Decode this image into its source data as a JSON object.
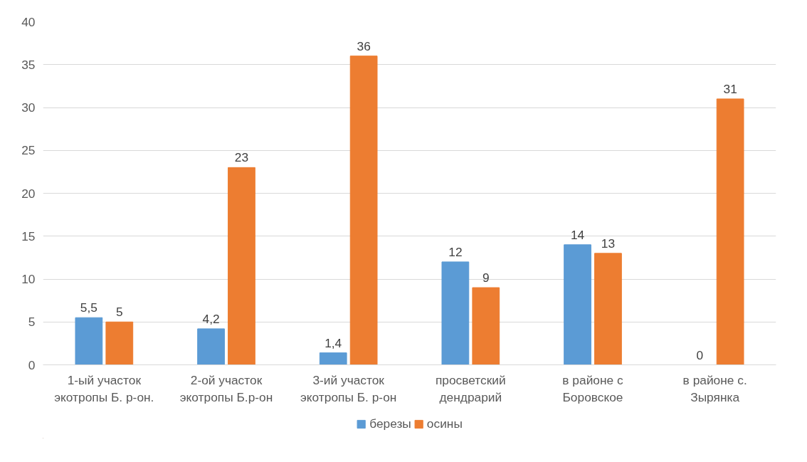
{
  "chart_data": {
    "type": "bar",
    "categories": [
      "1-ый участок экотропы Б. р-он.",
      "2-ой участок экотропы Б.р-он",
      "3-ий участок экотропы Б. р-он",
      "просветский дендрарий",
      "в районе с Боровское",
      "в районе с. Зырянка"
    ],
    "series": [
      {
        "name": "березы",
        "color": "#5b9bd5",
        "values": [
          5.5,
          4.2,
          1.4,
          12,
          14,
          0
        ],
        "value_labels": [
          "5,5",
          "4,2",
          "1,4",
          "12",
          "14",
          "0"
        ]
      },
      {
        "name": "осины",
        "color": "#ed7d31",
        "values": [
          5,
          23,
          36,
          9,
          13,
          31
        ],
        "value_labels": [
          "5",
          "23",
          "36",
          "9",
          "13",
          "31"
        ]
      }
    ],
    "ylim": [
      0,
      40
    ],
    "yticks": [
      0,
      5,
      10,
      15,
      20,
      25,
      30,
      35,
      40
    ],
    "grid": "y",
    "legend": "bottom"
  }
}
